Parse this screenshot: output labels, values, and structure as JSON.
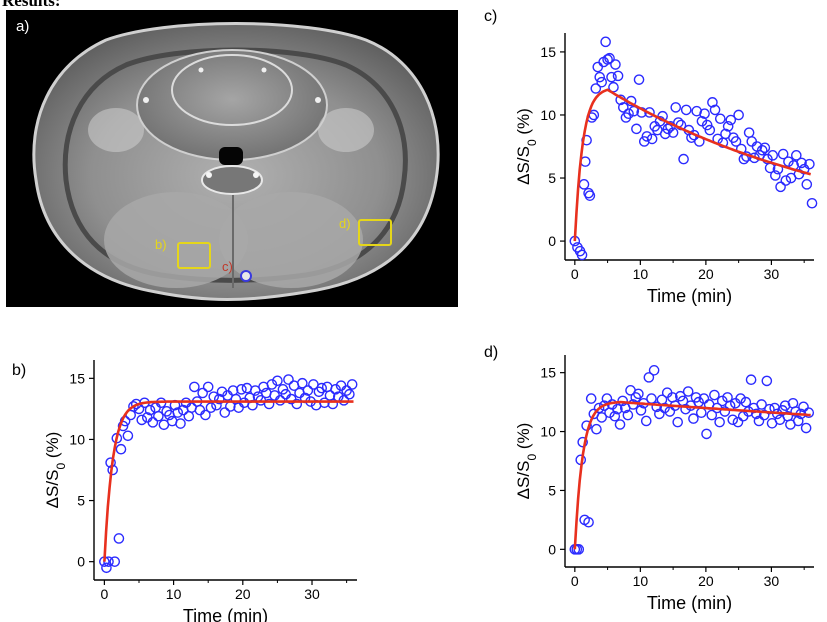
{
  "heading": "Results:",
  "image_panel": {
    "label": "a)",
    "roi_labels": {
      "b": "b)",
      "c": "c)",
      "d": "d)"
    },
    "colors": {
      "roi": "#e5d61a",
      "roi_c_label": "#c0392b",
      "roi_c_marker": "#3a3adf"
    }
  },
  "colors": {
    "point": "#2b2bff",
    "fit": "#e8301e"
  },
  "chart_data": [
    {
      "id": "c",
      "panel_label": "c)",
      "type": "scatter",
      "xlabel": "Time (min)",
      "ylabel": "ΔS/S0 (%)",
      "xlim": [
        -1.5,
        36.5
      ],
      "ylim": [
        -1.5,
        16.5
      ],
      "xticks": [
        0,
        10,
        20,
        30
      ],
      "yticks": [
        0,
        5,
        10,
        15
      ],
      "series": [
        {
          "kind": "points",
          "x": [
            0,
            0.4,
            0.8,
            1.1,
            1.4,
            1.6,
            1.8,
            2.1,
            2.3,
            2.6,
            2.9,
            3.2,
            3.5,
            3.8,
            4.1,
            4.4,
            4.7,
            5.0,
            5.3,
            5.6,
            5.9,
            6.2,
            6.6,
            7.0,
            7.4,
            7.8,
            8.2,
            8.6,
            9.0,
            9.4,
            9.8,
            10.2,
            10.6,
            11.0,
            11.4,
            11.8,
            12.2,
            12.6,
            13.0,
            13.4,
            13.8,
            14.2,
            14.6,
            15.0,
            15.4,
            15.8,
            16.2,
            16.6,
            17.0,
            17.4,
            17.8,
            18.2,
            18.6,
            19.0,
            19.4,
            19.8,
            20.2,
            20.6,
            21.0,
            21.4,
            21.8,
            22.2,
            22.6,
            23.0,
            23.4,
            23.8,
            24.2,
            24.6,
            25.0,
            25.4,
            25.8,
            26.2,
            26.6,
            27.0,
            27.4,
            27.8,
            28.2,
            28.6,
            29.0,
            29.4,
            29.8,
            30.2,
            30.6,
            31.0,
            31.4,
            31.8,
            32.2,
            32.6,
            33.0,
            33.4,
            33.8,
            34.2,
            34.6,
            35.0,
            35.4,
            35.8,
            36.2
          ],
          "y": [
            0,
            -0.5,
            -0.8,
            -1.1,
            4.5,
            6.3,
            8.0,
            3.8,
            3.6,
            9.8,
            10.0,
            12.1,
            13.8,
            13.0,
            12.6,
            14.2,
            15.8,
            14.4,
            14.5,
            13.0,
            12.2,
            14.0,
            13.1,
            11.2,
            10.6,
            9.8,
            10.1,
            11.1,
            10.3,
            8.9,
            12.8,
            10.2,
            7.9,
            8.3,
            10.2,
            8.1,
            9.1,
            8.8,
            9.5,
            9.9,
            8.5,
            8.9,
            9.1,
            8.6,
            10.6,
            9.4,
            9.2,
            6.5,
            10.4,
            8.8,
            8.2,
            8.4,
            10.3,
            7.9,
            9.5,
            10.1,
            9.2,
            8.8,
            11.0,
            10.4,
            8.1,
            9.7,
            7.8,
            8.5,
            9.1,
            9.6,
            8.2,
            7.9,
            10.0,
            7.3,
            6.5,
            6.7,
            8.6,
            7.9,
            6.6,
            7.5,
            6.8,
            7.2,
            7.4,
            6.5,
            5.8,
            6.8,
            5.2,
            5.7,
            4.3,
            6.9,
            4.8,
            6.3,
            5.0,
            6.0,
            6.8,
            5.3,
            6.2,
            5.7,
            4.5,
            6.1,
            3.0
          ]
        },
        {
          "kind": "fit",
          "model": "uptake-washout",
          "peak_time": 5,
          "peak": 12.0,
          "end_value": 5.3
        }
      ]
    },
    {
      "id": "b",
      "panel_label": "b)",
      "type": "scatter",
      "xlabel": "Time (min)",
      "ylabel": "ΔS/S0 (%)",
      "xlim": [
        -1.5,
        36.5
      ],
      "ylim": [
        -1.5,
        16.5
      ],
      "xticks": [
        0,
        10,
        20,
        30
      ],
      "yticks": [
        0,
        5,
        10,
        15
      ],
      "series": [
        {
          "kind": "points",
          "x": [
            0,
            0.3,
            0.6,
            0.9,
            1.2,
            1.5,
            1.8,
            2.1,
            2.4,
            2.7,
            3.0,
            3.4,
            3.8,
            4.2,
            4.6,
            5.0,
            5.4,
            5.8,
            6.2,
            6.6,
            7.0,
            7.4,
            7.8,
            8.2,
            8.6,
            9.0,
            9.4,
            9.8,
            10.2,
            10.6,
            11.0,
            11.4,
            11.8,
            12.2,
            12.6,
            13.0,
            13.4,
            13.8,
            14.2,
            14.6,
            15.0,
            15.4,
            15.8,
            16.2,
            16.6,
            17.0,
            17.4,
            17.8,
            18.2,
            18.6,
            19.0,
            19.4,
            19.8,
            20.2,
            20.6,
            21.0,
            21.4,
            21.8,
            22.2,
            22.6,
            23.0,
            23.4,
            23.8,
            24.2,
            24.6,
            25.0,
            25.4,
            25.8,
            26.2,
            26.6,
            27.0,
            27.4,
            27.8,
            28.2,
            28.6,
            29.0,
            29.4,
            29.8,
            30.2,
            30.6,
            31.0,
            31.4,
            31.8,
            32.2,
            32.6,
            33.0,
            33.4,
            33.8,
            34.2,
            34.6,
            35.0,
            35.4,
            35.8
          ],
          "y": [
            0,
            -0.5,
            0,
            8.1,
            7.5,
            0,
            10.1,
            1.9,
            9.2,
            11.1,
            11.5,
            10.3,
            12.0,
            12.7,
            12.9,
            12.5,
            11.6,
            13.0,
            11.8,
            12.4,
            11.4,
            12.6,
            11.9,
            13.0,
            11.2,
            12.3,
            12.0,
            11.5,
            12.8,
            12.2,
            11.3,
            12.4,
            13.0,
            11.9,
            12.6,
            14.3,
            13.1,
            12.4,
            13.8,
            12.0,
            14.3,
            12.6,
            13.5,
            12.8,
            13.3,
            13.9,
            12.2,
            13.6,
            12.7,
            14.0,
            13.3,
            12.6,
            14.1,
            13.0,
            14.2,
            13.4,
            12.8,
            14.0,
            13.5,
            13.2,
            14.3,
            13.8,
            12.9,
            14.5,
            13.6,
            14.8,
            13.2,
            14.1,
            13.7,
            14.9,
            13.3,
            14.4,
            12.9,
            13.8,
            14.6,
            13.4,
            14.0,
            13.1,
            14.5,
            12.8,
            13.9,
            14.2,
            13.0,
            14.3,
            13.6,
            12.9,
            14.1,
            13.5,
            14.4,
            13.2,
            14.0,
            13.7,
            14.5
          ]
        },
        {
          "kind": "fit",
          "model": "uptake-plateau",
          "plateau": 13.1
        }
      ]
    },
    {
      "id": "d",
      "panel_label": "d)",
      "type": "scatter",
      "xlabel": "Time (min)",
      "ylabel": "ΔS/S0 (%)",
      "xlim": [
        -1.5,
        36.5
      ],
      "ylim": [
        -1.5,
        16.5
      ],
      "xticks": [
        0,
        10,
        20,
        30
      ],
      "yticks": [
        0,
        5,
        10,
        15
      ],
      "series": [
        {
          "kind": "points",
          "x": [
            0,
            0.3,
            0.6,
            0.9,
            1.2,
            1.5,
            1.8,
            2.1,
            2.5,
            2.9,
            3.3,
            3.7,
            4.1,
            4.5,
            4.9,
            5.3,
            5.7,
            6.1,
            6.5,
            6.9,
            7.3,
            7.7,
            8.1,
            8.5,
            8.9,
            9.3,
            9.7,
            10.1,
            10.5,
            10.9,
            11.3,
            11.7,
            12.1,
            12.5,
            12.9,
            13.3,
            13.7,
            14.1,
            14.5,
            14.9,
            15.3,
            15.7,
            16.1,
            16.5,
            16.9,
            17.3,
            17.7,
            18.1,
            18.5,
            18.9,
            19.3,
            19.7,
            20.1,
            20.5,
            20.9,
            21.3,
            21.7,
            22.1,
            22.5,
            22.9,
            23.3,
            23.7,
            24.1,
            24.5,
            24.9,
            25.3,
            25.7,
            26.1,
            26.5,
            26.9,
            27.3,
            27.7,
            28.1,
            28.5,
            28.9,
            29.3,
            29.7,
            30.1,
            30.5,
            30.9,
            31.3,
            31.7,
            32.1,
            32.5,
            32.9,
            33.3,
            33.7,
            34.1,
            34.5,
            34.9,
            35.3,
            35.7
          ],
          "y": [
            0,
            0,
            0,
            7.6,
            9.1,
            2.5,
            10.5,
            2.3,
            12.8,
            11.5,
            10.2,
            12.0,
            11.2,
            12.2,
            12.8,
            11.6,
            12.3,
            11.3,
            11.9,
            10.6,
            12.6,
            12.0,
            11.4,
            13.5,
            12.3,
            12.9,
            13.2,
            11.8,
            12.4,
            10.9,
            14.6,
            12.8,
            15.2,
            12.1,
            11.5,
            12.7,
            12.0,
            13.3,
            11.7,
            12.9,
            12.2,
            10.8,
            13.0,
            12.6,
            11.9,
            13.4,
            12.2,
            11.1,
            12.9,
            12.5,
            11.6,
            12.8,
            9.8,
            12.3,
            11.4,
            13.1,
            12.0,
            10.8,
            12.6,
            11.7,
            12.9,
            12.2,
            11.0,
            12.4,
            10.8,
            12.8,
            11.3,
            12.5,
            11.7,
            14.4,
            12.0,
            11.5,
            10.9,
            12.3,
            11.4,
            14.3,
            11.9,
            10.7,
            12.0,
            11.5,
            11.0,
            11.8,
            12.2,
            11.3,
            10.6,
            12.4,
            11.7,
            10.9,
            11.5,
            12.1,
            10.3,
            11.6
          ]
        },
        {
          "kind": "fit",
          "model": "uptake-slow-decline",
          "peak_time": 7,
          "peak": 12.5,
          "end_value": 11.4
        }
      ]
    }
  ]
}
